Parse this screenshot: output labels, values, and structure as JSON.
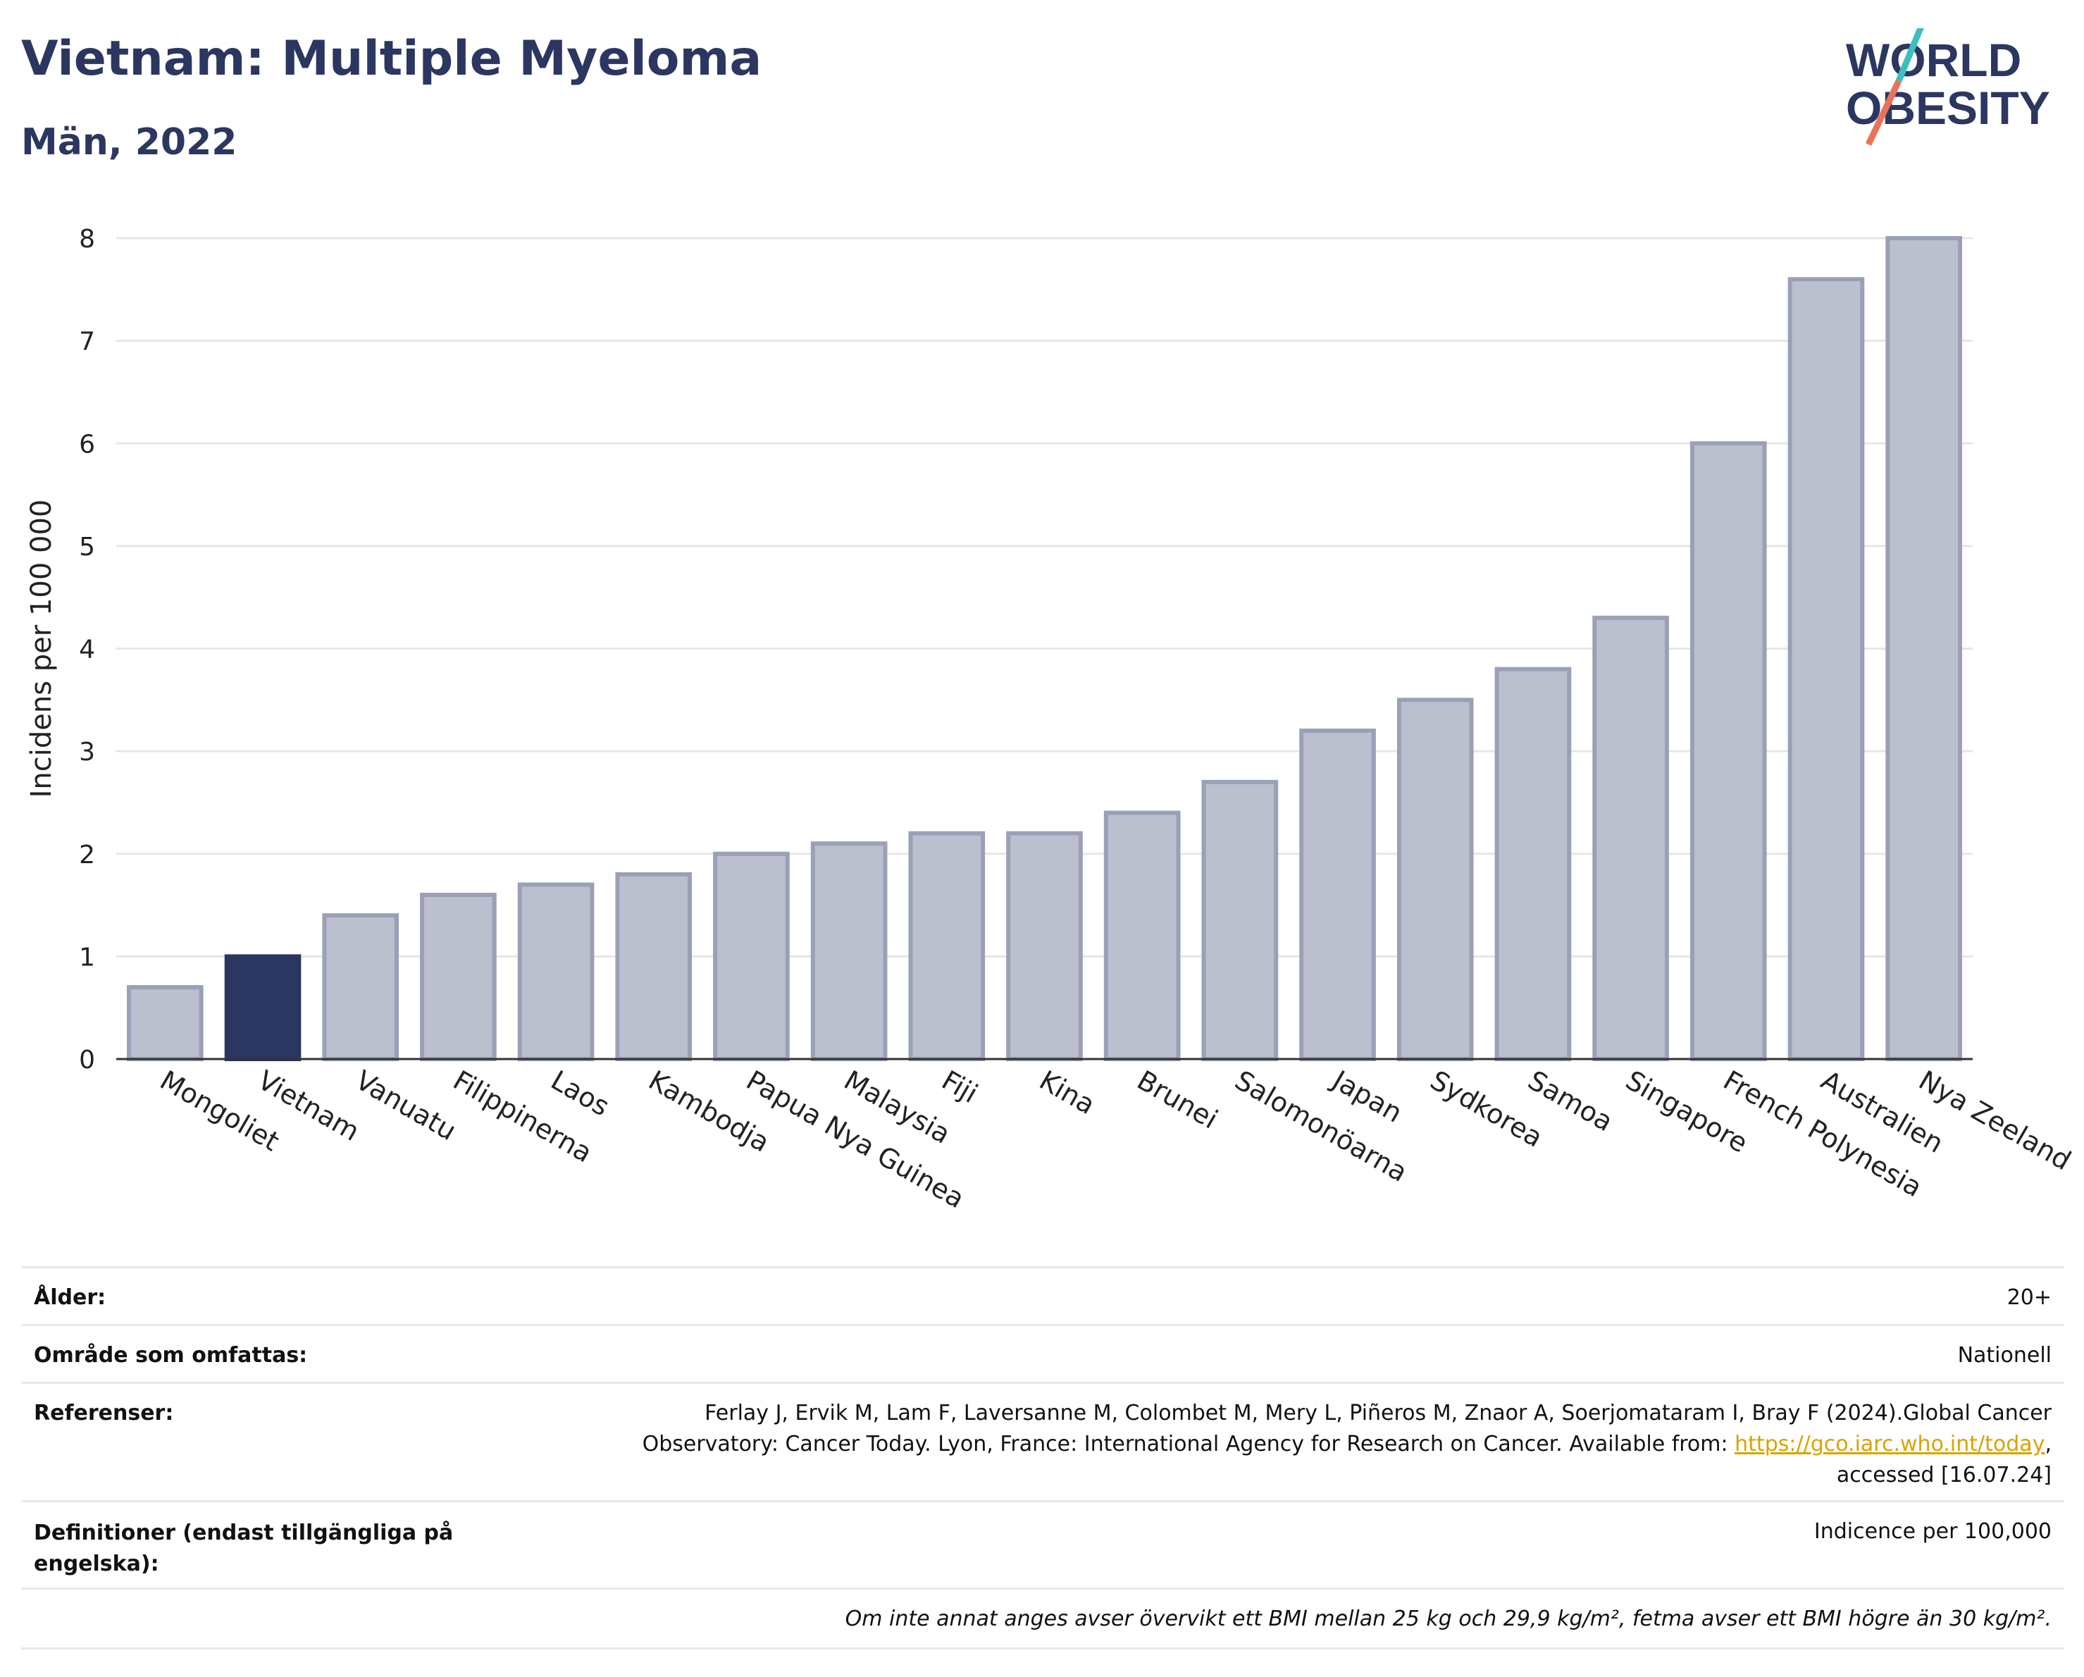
{
  "header": {
    "title": "Vietnam: Multiple Myeloma",
    "subtitle": "Män, 2022",
    "logo_line1": "WORLD",
    "logo_line2": "OBESITY"
  },
  "colors": {
    "highlight": "#2b3760",
    "bar": "#bcc0ce",
    "bar_edge": "#9aa0b6",
    "brand_teal": "#3dbfbf",
    "brand_red": "#e8735a"
  },
  "chart_data": {
    "type": "bar",
    "ylabel": "Incidens per 100 000",
    "ylim": [
      0,
      8
    ],
    "yticks": [
      0,
      1,
      2,
      3,
      4,
      5,
      6,
      7,
      8
    ],
    "grid": true,
    "highlight_category": "Vietnam",
    "categories": [
      "Mongoliet",
      "Vietnam",
      "Vanuatu",
      "Filippinerna",
      "Laos",
      "Kambodja",
      "Papua Nya Guinea",
      "Malaysia",
      "Fiji",
      "Kina",
      "Brunei",
      "Salomonöarna",
      "Japan",
      "Sydkorea",
      "Samoa",
      "Singapore",
      "French Polynesia",
      "Australien",
      "Nya Zeeland"
    ],
    "values": [
      0.7,
      1.0,
      1.4,
      1.6,
      1.7,
      1.8,
      2.0,
      2.1,
      2.2,
      2.2,
      2.4,
      2.7,
      3.2,
      3.5,
      3.8,
      4.3,
      6.0,
      7.6,
      8.0
    ]
  },
  "table": {
    "age_label": "Ålder:",
    "age_value": "20+",
    "area_label": "Område som omfattas:",
    "area_value": "Nationell",
    "ref_label": "Referenser:",
    "ref_line1": "Ferlay J, Ervik M, Lam F, Laversanne M, Colombet M, Mery L, Piñeros M, Znaor A, Soerjomataram I, Bray F (2024).Global Cancer",
    "ref_line2": "Observatory: Cancer Today. Lyon, France: International Agency for Research on Cancer. Available from: ",
    "ref_link": "https://gco.iarc.who.int/today",
    "ref_line2_end": ",",
    "ref_line3": "accessed [16.07.24]",
    "def_label_1": "Definitioner (endast tillgängliga på",
    "def_label_2": "engelska):",
    "def_value": "Indicence per 100,000",
    "note": "Om inte annat anges avser övervikt ett BMI mellan 25 kg och 29,9 kg/m², fetma avser ett BMI högre än 30 kg/m²."
  }
}
